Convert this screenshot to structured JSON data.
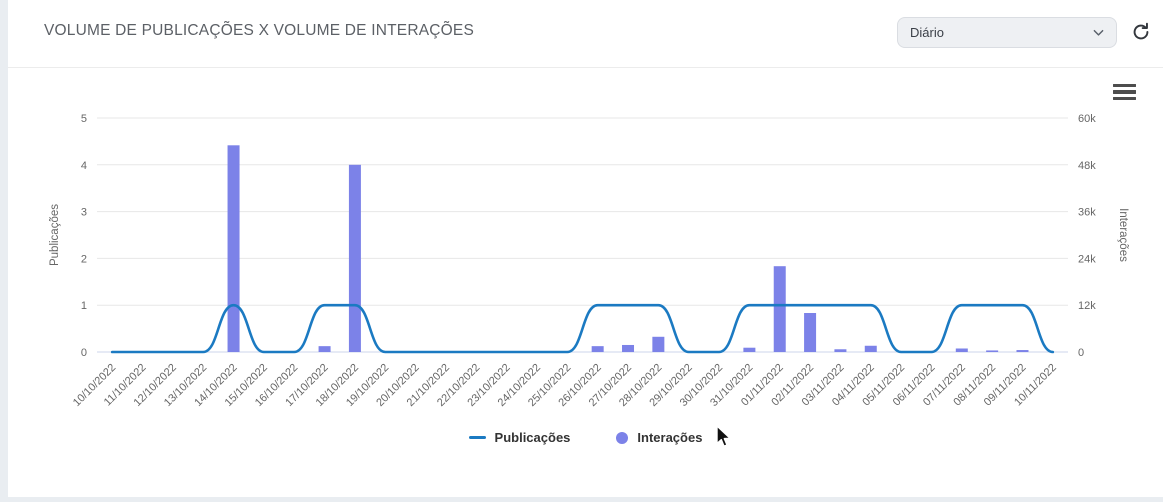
{
  "panel": {
    "title": "VOLUME DE PUBLICAÇÕES X VOLUME DE INTERAÇÕES",
    "period_select": {
      "value": "Diário"
    },
    "icons": {
      "refresh": "circular-arrow-refresh",
      "chevron": "chevron-down",
      "menu": "hamburger-context-menu"
    }
  },
  "chart_data": {
    "type": "line+bar",
    "categories": [
      "10/10/2022",
      "11/10/2022",
      "12/10/2022",
      "13/10/2022",
      "14/10/2022",
      "15/10/2022",
      "16/10/2022",
      "17/10/2022",
      "18/10/2022",
      "19/10/2022",
      "20/10/2022",
      "21/10/2022",
      "22/10/2022",
      "23/10/2022",
      "24/10/2022",
      "25/10/2022",
      "26/10/2022",
      "27/10/2022",
      "28/10/2022",
      "29/10/2022",
      "30/10/2022",
      "31/10/2022",
      "01/11/2022",
      "02/11/2022",
      "03/11/2022",
      "04/11/2022",
      "05/11/2022",
      "06/11/2022",
      "07/11/2022",
      "08/11/2022",
      "09/11/2022",
      "10/11/2022"
    ],
    "series": [
      {
        "name": "Publicações",
        "type": "line",
        "axis": "left",
        "color": "#1b7ac2",
        "values": [
          0,
          0,
          0,
          0,
          1,
          0,
          0,
          1,
          1,
          0,
          0,
          0,
          0,
          0,
          0,
          0,
          1,
          1,
          1,
          0,
          0,
          1,
          1,
          1,
          1,
          1,
          0,
          0,
          1,
          1,
          1,
          0
        ]
      },
      {
        "name": "Interações",
        "type": "bar",
        "axis": "right",
        "color": "#7c82e8",
        "values": [
          0,
          0,
          0,
          0,
          53000,
          0,
          0,
          1500,
          48000,
          0,
          0,
          0,
          0,
          0,
          0,
          0,
          1500,
          1800,
          3900,
          0,
          0,
          1100,
          22000,
          10000,
          700,
          1600,
          0,
          0,
          900,
          400,
          500,
          0
        ]
      }
    ],
    "left_axis": {
      "title": "Publicações",
      "min": 0,
      "max": 5,
      "ticks": [
        "0",
        "1",
        "2",
        "3",
        "4",
        "5"
      ]
    },
    "right_axis": {
      "title": "Interações",
      "min": 0,
      "max": 60000,
      "ticks": [
        "0",
        "12k",
        "24k",
        "36k",
        "48k",
        "60k"
      ]
    },
    "legend": [
      {
        "label": "Publicações",
        "swatch": "line"
      },
      {
        "label": "Interações",
        "swatch": "circle"
      }
    ],
    "grid": true,
    "grid_color": "#e7e7e7",
    "baseline_color": "#ccd6eb",
    "tick_label_color": "#666666"
  }
}
